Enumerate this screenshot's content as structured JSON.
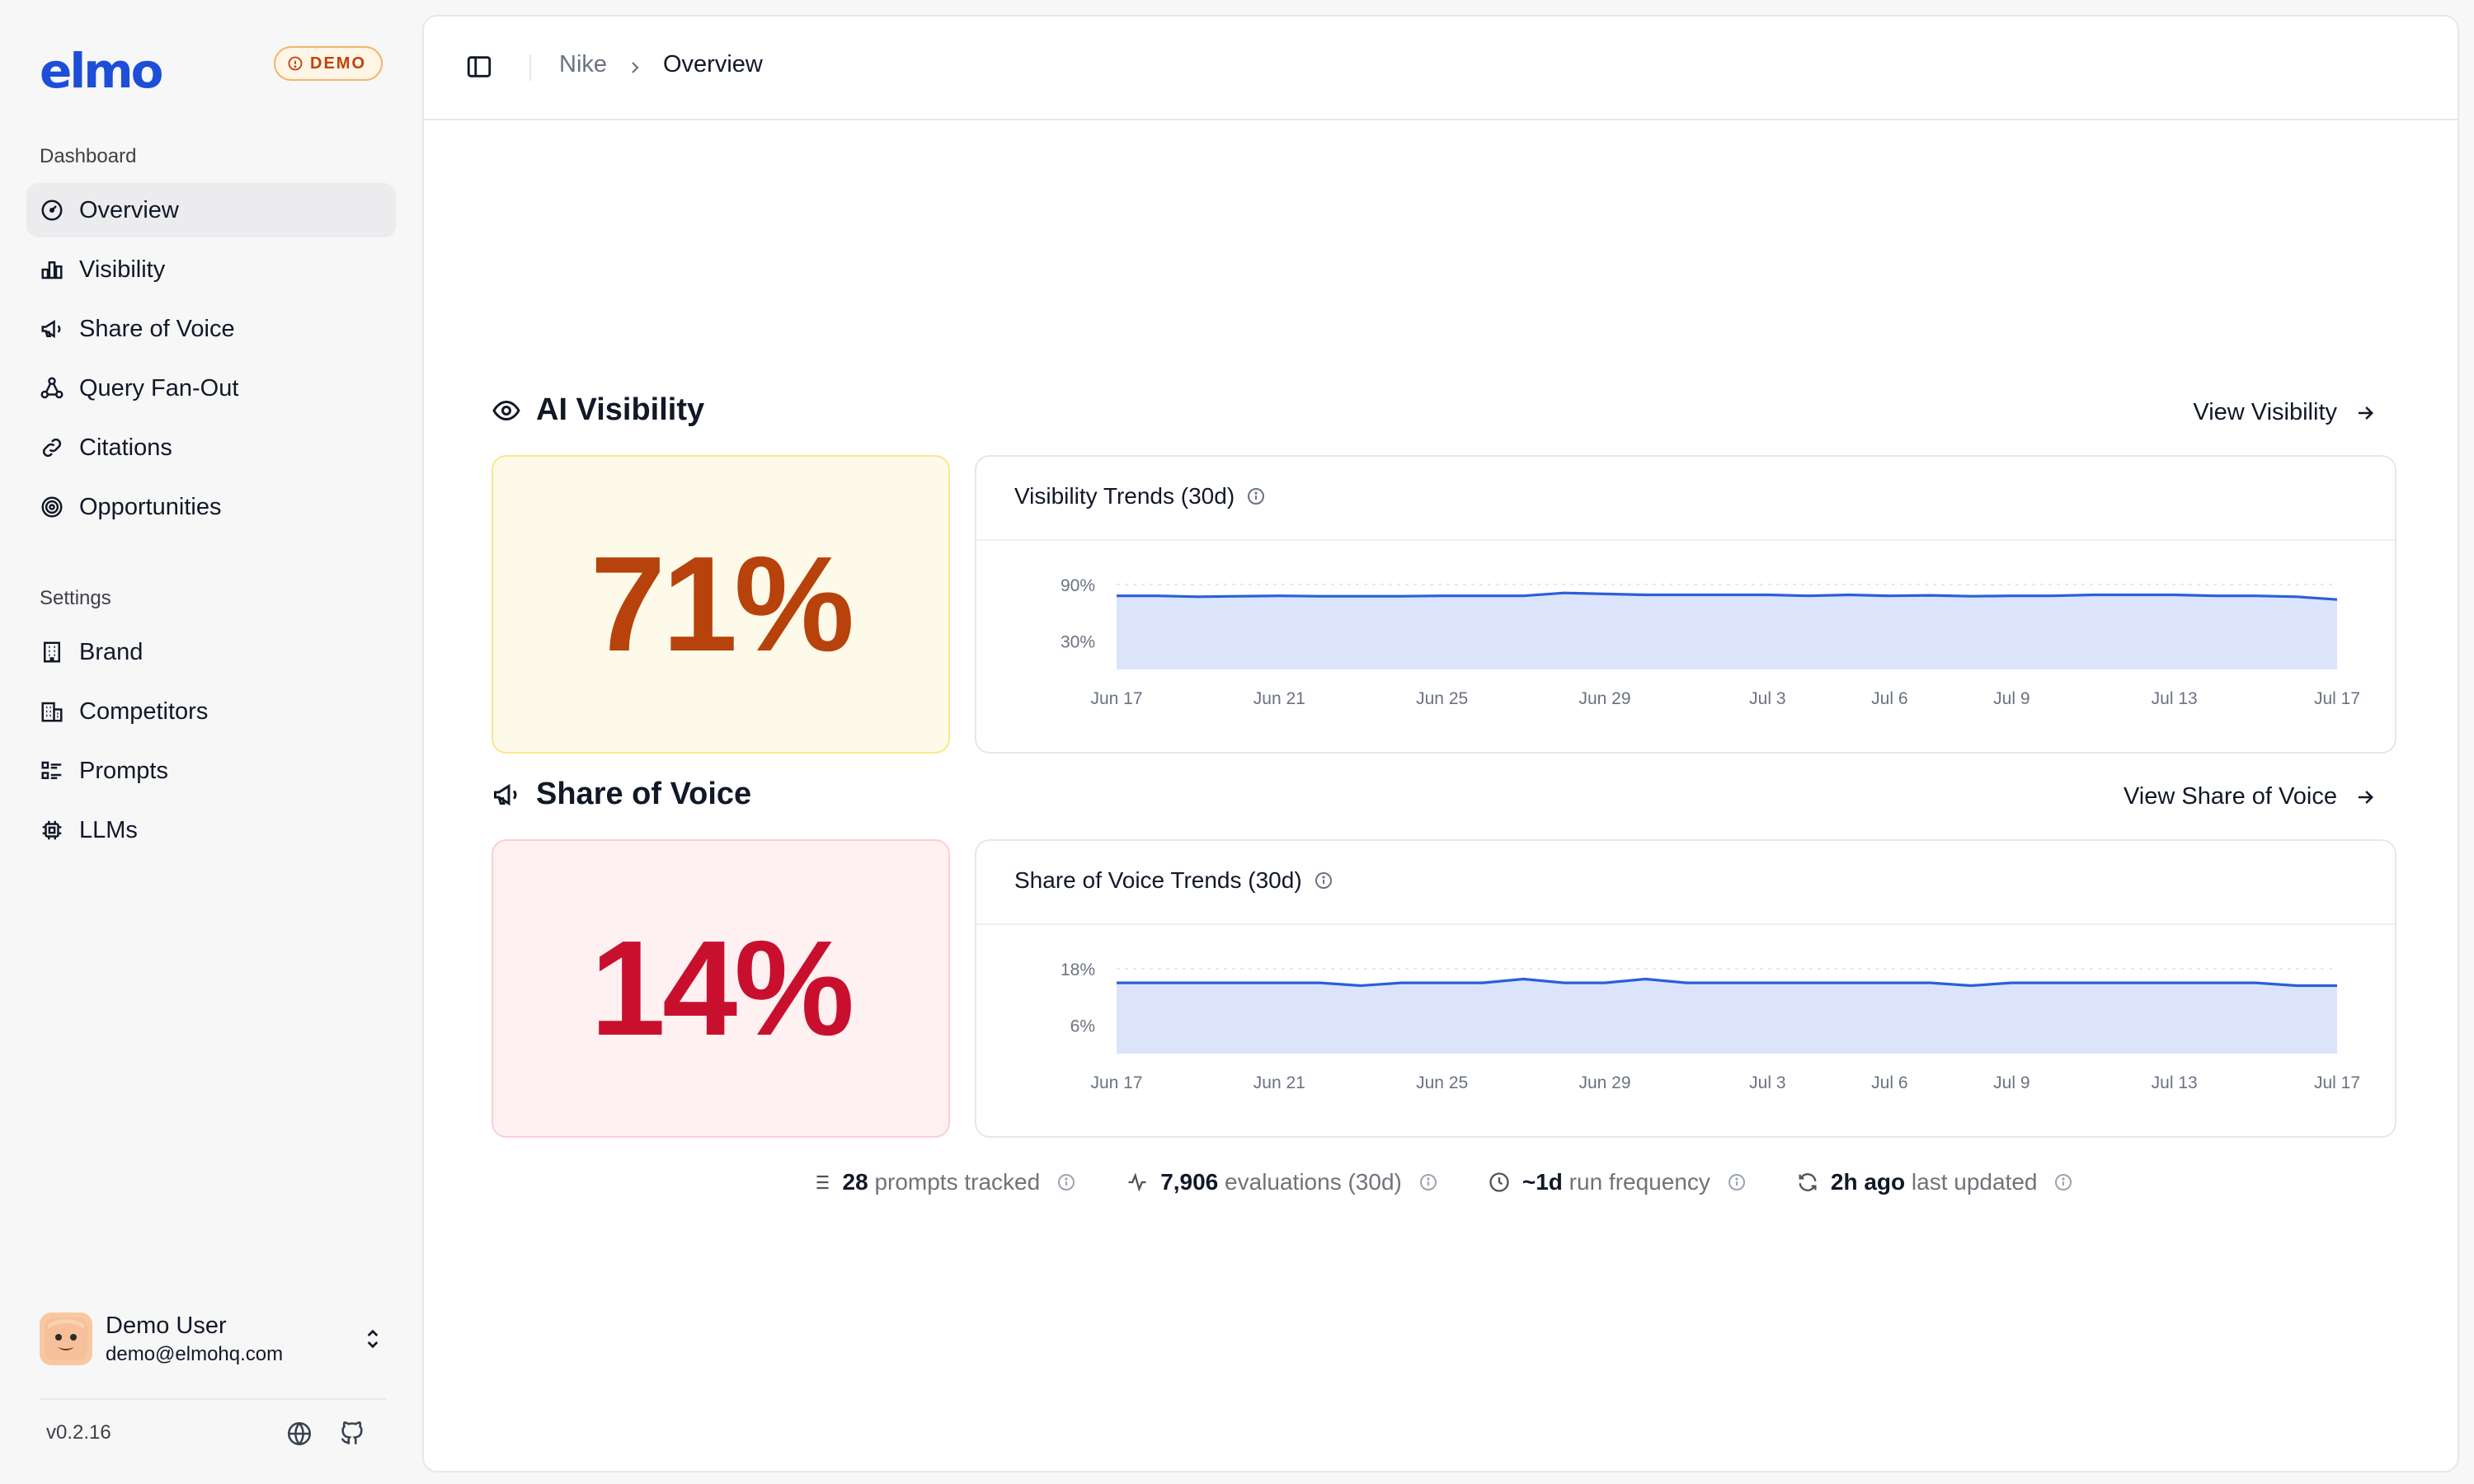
{
  "brand": {
    "logo_text": "elmo",
    "demo_badge": "DEMO",
    "accent": "#1d4ed8"
  },
  "sidebar": {
    "dashboard_label": "Dashboard",
    "dashboard_items": [
      {
        "label": "Overview",
        "icon": "gauge-icon",
        "active": true
      },
      {
        "label": "Visibility",
        "icon": "bar-chart-icon"
      },
      {
        "label": "Share of Voice",
        "icon": "megaphone-icon"
      },
      {
        "label": "Query Fan-Out",
        "icon": "network-icon"
      },
      {
        "label": "Citations",
        "icon": "link-icon"
      },
      {
        "label": "Opportunities",
        "icon": "target-icon"
      }
    ],
    "settings_label": "Settings",
    "settings_items": [
      {
        "label": "Brand",
        "icon": "building-icon"
      },
      {
        "label": "Competitors",
        "icon": "buildings-icon"
      },
      {
        "label": "Prompts",
        "icon": "list-checks-icon"
      },
      {
        "label": "LLMs",
        "icon": "cpu-icon"
      }
    ],
    "user": {
      "name": "Demo User",
      "email": "demo@elmohq.com"
    },
    "version": "v0.2.16"
  },
  "breadcrumb": {
    "parent": "Nike",
    "current": "Overview"
  },
  "ai_visibility": {
    "title": "AI Visibility",
    "link": "View Visibility",
    "value": "71%",
    "value_color": "#b8420b",
    "chart_title": "Visibility Trends (30d)"
  },
  "share_of_voice": {
    "title": "Share of Voice",
    "link": "View Share of Voice",
    "value": "14%",
    "value_color": "#c8102e",
    "chart_title": "Share of Voice Trends (30d)"
  },
  "stats": {
    "prompts_value": "28",
    "prompts_label": "prompts tracked",
    "evals_value": "7,906",
    "evals_label": "evaluations (30d)",
    "freq_value": "~1d",
    "freq_label": "run frequency",
    "updated_value": "2h ago",
    "updated_label": "last updated"
  },
  "chart_data": [
    {
      "type": "area",
      "title": "Visibility Trends (30d)",
      "x_ticks": [
        "Jun 17",
        "Jun 21",
        "Jun 25",
        "Jun 29",
        "Jul 3",
        "Jul 6",
        "Jul 9",
        "Jul 13",
        "Jul 17"
      ],
      "y_ticks": [
        "90%",
        "30%"
      ],
      "y_tick_values": [
        90,
        30
      ],
      "ylim": [
        0,
        110
      ],
      "x": [
        "Jun 17",
        "Jun 18",
        "Jun 19",
        "Jun 20",
        "Jun 21",
        "Jun 22",
        "Jun 23",
        "Jun 24",
        "Jun 25",
        "Jun 26",
        "Jun 27",
        "Jun 28",
        "Jun 29",
        "Jun 30",
        "Jul 1",
        "Jul 2",
        "Jul 3",
        "Jul 4",
        "Jul 5",
        "Jul 6",
        "Jul 7",
        "Jul 8",
        "Jul 9",
        "Jul 10",
        "Jul 11",
        "Jul 12",
        "Jul 13",
        "Jul 14",
        "Jul 15",
        "Jul 16",
        "Jul 17"
      ],
      "values": [
        78,
        78,
        77,
        77.5,
        78,
        77.5,
        77.5,
        77.5,
        78,
        78,
        78,
        81,
        80,
        79,
        79,
        79,
        79,
        78,
        79,
        78,
        78.5,
        77.5,
        78,
        78,
        79,
        79,
        79,
        78,
        78,
        77,
        74
      ],
      "color": "#2b5fd9",
      "fill": "#dbe4fb",
      "grid": true
    },
    {
      "type": "area",
      "title": "Share of Voice Trends (30d)",
      "x_ticks": [
        "Jun 17",
        "Jun 21",
        "Jun 25",
        "Jun 29",
        "Jul 3",
        "Jul 6",
        "Jul 9",
        "Jul 13",
        "Jul 17"
      ],
      "y_ticks": [
        "18%",
        "6%"
      ],
      "y_tick_values": [
        18,
        6
      ],
      "ylim": [
        0,
        22
      ],
      "x": [
        "Jun 17",
        "Jun 18",
        "Jun 19",
        "Jun 20",
        "Jun 21",
        "Jun 22",
        "Jun 23",
        "Jun 24",
        "Jun 25",
        "Jun 26",
        "Jun 27",
        "Jun 28",
        "Jun 29",
        "Jun 30",
        "Jul 1",
        "Jul 2",
        "Jul 3",
        "Jul 4",
        "Jul 5",
        "Jul 6",
        "Jul 7",
        "Jul 8",
        "Jul 9",
        "Jul 10",
        "Jul 11",
        "Jul 12",
        "Jul 13",
        "Jul 14",
        "Jul 15",
        "Jul 16",
        "Jul 17"
      ],
      "values": [
        15,
        15,
        15,
        15,
        15,
        15,
        14.4,
        15,
        15,
        15,
        15.8,
        15,
        15,
        15.8,
        15,
        15,
        15,
        15,
        15,
        15,
        15,
        14.4,
        15,
        15,
        15,
        15,
        15,
        15,
        15,
        14.4,
        14.4
      ],
      "color": "#2b5fd9",
      "fill": "#dbe4fb",
      "grid": true
    }
  ]
}
